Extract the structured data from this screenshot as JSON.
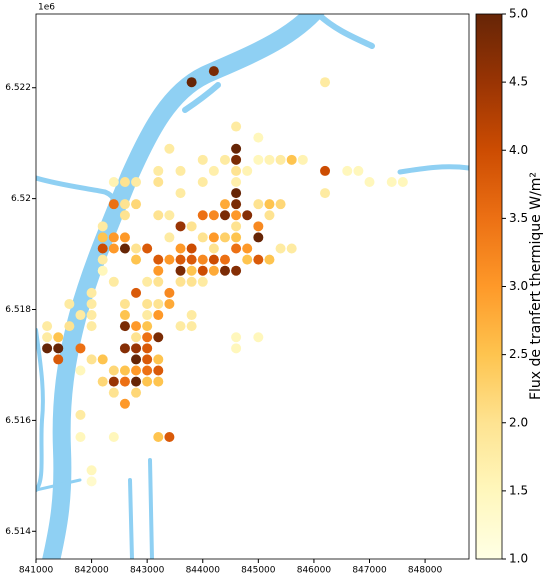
{
  "chart_data": {
    "type": "scatter",
    "offset_text": "1e6",
    "colorbar_label": "Flux de tranfert thermique W/m²",
    "xlim": [
      841000,
      848790
    ],
    "xticks": [
      841000,
      842000,
      843000,
      844000,
      845000,
      846000,
      847000,
      848000
    ],
    "ylim": [
      6.5135,
      6.52333
    ],
    "yticks": [
      6.514,
      6.516,
      6.518,
      6.52,
      6.522
    ],
    "clim": [
      1,
      5
    ],
    "cticks": [
      {
        "value": 1,
        "label": "1.0"
      },
      1.5,
      {
        "value": 2,
        "label": "2.0"
      },
      2.5,
      {
        "value": 3,
        "label": "3.0"
      },
      3.5,
      {
        "value": 4,
        "label": "4.0"
      },
      4.5,
      {
        "value": 5,
        "label": "5.0"
      }
    ],
    "colormap": [
      "#ffffe5",
      "#fff7bc",
      "#fee391",
      "#fec44f",
      "#fe9929",
      "#ec7014",
      "#cc4c02",
      "#993404",
      "#662506"
    ],
    "x": [
      843800,
      844200,
      846200,
      844600,
      845000,
      844600,
      843400,
      844000,
      844400,
      844600,
      845000,
      845200,
      845400,
      845600,
      845800,
      846200,
      846600,
      846800,
      843200,
      843600,
      844200,
      844600,
      844800,
      842400,
      842600,
      842800,
      843200,
      844000,
      844600,
      847000,
      847400,
      847600,
      843600,
      844600,
      846200,
      842400,
      842600,
      842800,
      844400,
      844600,
      845000,
      845200,
      845400,
      842600,
      843200,
      843400,
      844000,
      844200,
      844400,
      844600,
      844800,
      845200,
      842200,
      843600,
      843800,
      845000,
      844600,
      842200,
      842400,
      842600,
      843400,
      844000,
      844200,
      844400,
      844600,
      845000,
      842200,
      842400,
      842600,
      842800,
      843000,
      843600,
      843800,
      844200,
      844600,
      844800,
      845400,
      845600,
      842200,
      842800,
      843200,
      843400,
      843600,
      843800,
      844000,
      844200,
      844400,
      844800,
      845000,
      845200,
      842200,
      843200,
      843600,
      843800,
      844000,
      844200,
      844400,
      844600,
      842400,
      843000,
      843200,
      843600,
      843800,
      844000,
      842000,
      842800,
      843400,
      841600,
      842000,
      842600,
      843000,
      843200,
      843400,
      841800,
      842000,
      842600,
      843000,
      843200,
      843800,
      841200,
      841600,
      842000,
      842600,
      842800,
      843000,
      843600,
      843800,
      841200,
      841400,
      842800,
      843000,
      843200,
      844600,
      845000,
      841200,
      841400,
      841800,
      842600,
      842800,
      843000,
      844600,
      841400,
      842000,
      842200,
      842800,
      843000,
      843200,
      841800,
      842400,
      842600,
      842800,
      843000,
      843200,
      842200,
      842400,
      842600,
      842800,
      843000,
      843200,
      842400,
      842800,
      842600,
      841800,
      841800,
      842400,
      843200,
      843400,
      842000,
      842000
    ],
    "y": [
      6.5221,
      6.5223,
      6.5221,
      6.5213,
      6.5211,
      6.5209,
      6.5209,
      6.5207,
      6.5207,
      6.5207,
      6.5207,
      6.5207,
      6.5207,
      6.5207,
      6.5207,
      6.5205,
      6.5205,
      6.5205,
      6.5205,
      6.5205,
      6.5205,
      6.5205,
      6.5205,
      6.5203,
      6.5203,
      6.5203,
      6.5203,
      6.5203,
      6.5203,
      6.5203,
      6.5203,
      6.5203,
      6.5201,
      6.5201,
      6.5201,
      6.5199,
      6.5199,
      6.5199,
      6.5199,
      6.5199,
      6.5199,
      6.5199,
      6.5199,
      6.5197,
      6.5197,
      6.5197,
      6.5197,
      6.5197,
      6.5197,
      6.5197,
      6.5197,
      6.5197,
      6.5195,
      6.5195,
      6.5195,
      6.5195,
      6.5195,
      6.5193,
      6.5193,
      6.5193,
      6.5193,
      6.5193,
      6.5193,
      6.5193,
      6.5193,
      6.5193,
      6.5191,
      6.5191,
      6.5191,
      6.5191,
      6.5191,
      6.5191,
      6.5191,
      6.5191,
      6.5191,
      6.5191,
      6.5191,
      6.5191,
      6.5189,
      6.5189,
      6.5189,
      6.5189,
      6.5189,
      6.5189,
      6.5189,
      6.5189,
      6.5189,
      6.5189,
      6.5189,
      6.5189,
      6.5187,
      6.5187,
      6.5187,
      6.5187,
      6.5187,
      6.5187,
      6.5187,
      6.5187,
      6.5185,
      6.5185,
      6.5185,
      6.5185,
      6.5185,
      6.5185,
      6.5183,
      6.5183,
      6.5183,
      6.5181,
      6.5181,
      6.5181,
      6.5181,
      6.5181,
      6.5181,
      6.5179,
      6.5179,
      6.5179,
      6.5179,
      6.5179,
      6.5179,
      6.5177,
      6.5177,
      6.5177,
      6.5177,
      6.5177,
      6.5177,
      6.5177,
      6.5177,
      6.5175,
      6.5175,
      6.5175,
      6.5175,
      6.5175,
      6.5175,
      6.5175,
      6.5173,
      6.5173,
      6.5173,
      6.5173,
      6.5173,
      6.5173,
      6.5173,
      6.5171,
      6.5171,
      6.5171,
      6.5171,
      6.5171,
      6.5171,
      6.5169,
      6.5169,
      6.5169,
      6.5169,
      6.5169,
      6.5169,
      6.5167,
      6.5167,
      6.5167,
      6.5167,
      6.5167,
      6.5167,
      6.5165,
      6.5165,
      6.5163,
      6.5161,
      6.5157,
      6.5157,
      6.5157,
      6.5157,
      6.5151,
      6.5149
    ],
    "values": [
      5.0,
      4.8,
      1.8,
      1.8,
      1.5,
      5.0,
      1.8,
      1.8,
      1.8,
      4.8,
      1.5,
      1.6,
      1.8,
      2.5,
      1.6,
      4.0,
      1.5,
      1.5,
      1.8,
      1.8,
      1.7,
      2.0,
      1.6,
      1.6,
      2.0,
      1.8,
      2.0,
      1.8,
      1.7,
      1.5,
      1.5,
      1.5,
      1.8,
      5.0,
      1.8,
      3.5,
      2.0,
      2.2,
      2.8,
      4.8,
      2.0,
      2.5,
      2.2,
      2.0,
      2.0,
      1.8,
      3.5,
      3.2,
      4.8,
      3.0,
      4.7,
      2.0,
      1.8,
      4.5,
      2.0,
      3.2,
      2.0,
      2.5,
      3.0,
      3.0,
      1.8,
      2.0,
      3.0,
      2.3,
      2.5,
      5.0,
      4.0,
      3.0,
      5.0,
      2.0,
      3.8,
      3.0,
      4.0,
      2.0,
      3.5,
      3.0,
      1.8,
      1.8,
      1.8,
      2.5,
      3.8,
      3.0,
      3.8,
      3.8,
      3.2,
      4.0,
      3.5,
      2.5,
      3.8,
      2.5,
      1.5,
      3.0,
      4.8,
      2.5,
      4.0,
      2.8,
      4.8,
      4.7,
      1.8,
      1.8,
      2.0,
      2.0,
      2.0,
      1.8,
      1.8,
      3.8,
      3.2,
      1.8,
      1.8,
      2.0,
      2.0,
      2.0,
      2.8,
      1.8,
      1.8,
      2.5,
      1.8,
      3.0,
      1.8,
      1.8,
      2.0,
      1.8,
      4.8,
      3.0,
      2.5,
      1.8,
      1.8,
      1.8,
      2.5,
      2.0,
      3.5,
      4.8,
      1.5,
      1.5,
      5.0,
      5.0,
      3.5,
      4.7,
      4.5,
      3.8,
      1.5,
      3.8,
      2.0,
      2.5,
      5.0,
      3.8,
      2.5,
      1.5,
      2.2,
      2.5,
      3.0,
      3.5,
      3.8,
      2.2,
      4.5,
      3.5,
      5.0,
      2.5,
      2.5,
      2.0,
      2.2,
      3.0,
      1.8,
      1.5,
      1.5,
      2.5,
      3.8,
      1.5,
      1.3
    ]
  }
}
